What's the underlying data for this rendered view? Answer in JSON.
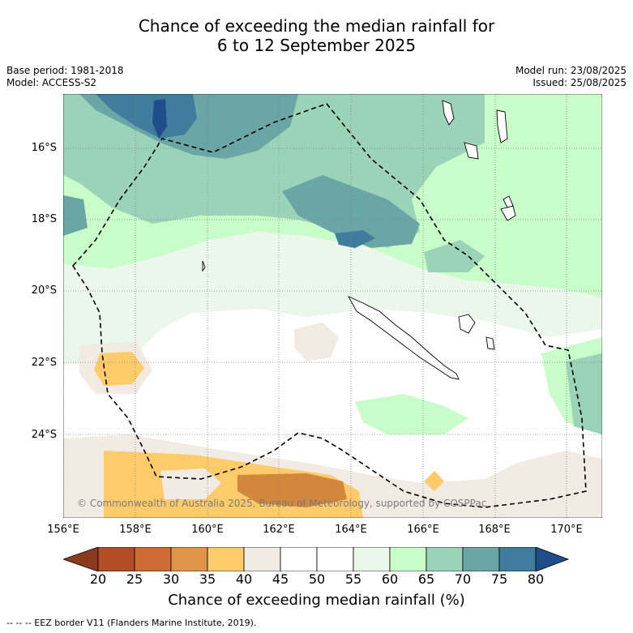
{
  "title_line1": "Chance of exceeding the median rainfall for",
  "title_line2": "6 to 12 September 2025",
  "base_period": "Base period: 1981-2018",
  "model": "Model: ACCESS-S2",
  "model_run": "Model run: 23/08/2025",
  "issued": "Issued: 25/08/2025",
  "lat_labels": [
    "16°S",
    "18°S",
    "20°S",
    "22°S",
    "24°S"
  ],
  "lon_labels": [
    "156°E",
    "158°E",
    "160°E",
    "162°E",
    "164°E",
    "166°E",
    "168°E",
    "170°E"
  ],
  "copyright": "© Commonwealth of Australia 2025, Bureau of Meteorology, supported by COSPPac",
  "colorbar": {
    "ticks": [
      "20",
      "25",
      "30",
      "35",
      "40",
      "45",
      "50",
      "55",
      "60",
      "65",
      "70",
      "75",
      "80"
    ],
    "colors": [
      "#8b3a1f",
      "#b24d25",
      "#cd6b34",
      "#e0944a",
      "#fecb6b",
      "#f2ebe4",
      "#ffffff",
      "#ffffff",
      "#eaf7ea",
      "#c8fcc8",
      "#9ad3b8",
      "#6aa6a6",
      "#3f7c9e",
      "#1f4e8a"
    ],
    "label": "Chance of exceeding median rainfall (%)"
  },
  "footnote": "--  --  -- EEZ border V11 (Flanders Marine Institute, 2019).",
  "colors": {
    "brown_dark": "#d2873d",
    "orange": "#fecb6b",
    "beige": "#f2ebe4",
    "pale_green": "#eaf7ea",
    "light_green": "#c8fcc8",
    "mid_green": "#9ad3b8",
    "teal": "#6aa6a6",
    "blue": "#3f7c9e",
    "dark_blue": "#1f4e8a"
  }
}
